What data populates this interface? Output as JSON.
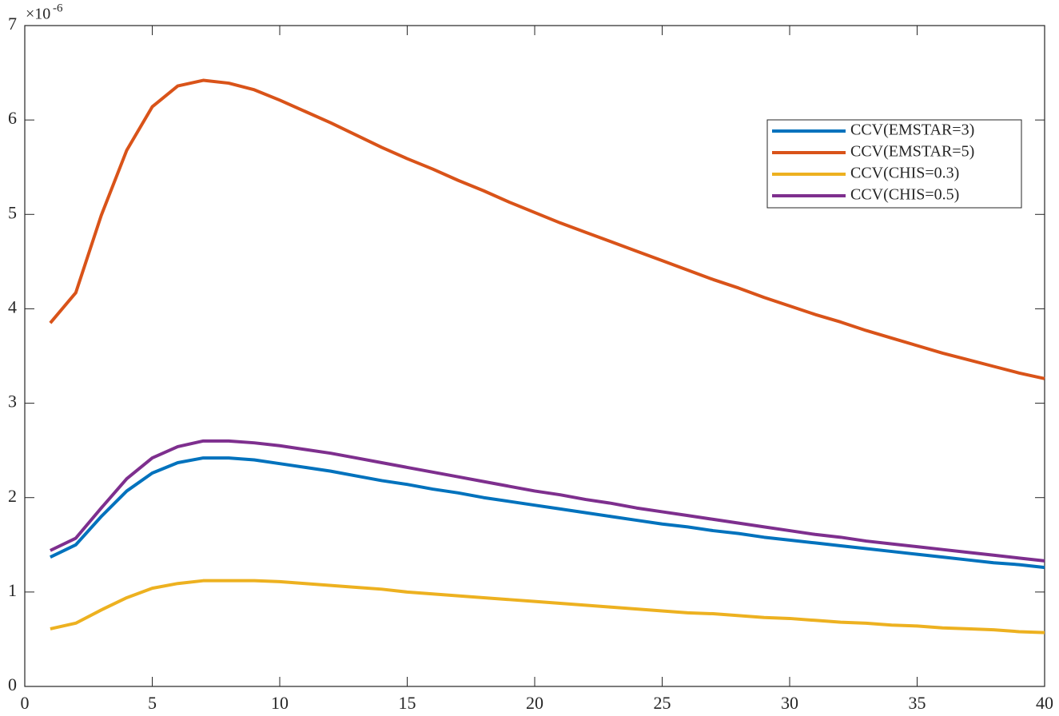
{
  "chart_data": {
    "type": "line",
    "x": [
      1,
      2,
      3,
      4,
      5,
      6,
      7,
      8,
      9,
      10,
      11,
      12,
      13,
      14,
      15,
      16,
      17,
      18,
      19,
      20,
      21,
      22,
      23,
      24,
      25,
      26,
      27,
      28,
      29,
      30,
      31,
      32,
      33,
      34,
      35,
      36,
      37,
      38,
      39,
      40
    ],
    "series": [
      {
        "name": "CCV(EMSTAR=3)",
        "color": "#0072bd",
        "values": [
          1.37,
          1.5,
          1.8,
          2.07,
          2.26,
          2.37,
          2.42,
          2.42,
          2.4,
          2.36,
          2.32,
          2.28,
          2.23,
          2.18,
          2.14,
          2.09,
          2.05,
          2.0,
          1.96,
          1.92,
          1.88,
          1.84,
          1.8,
          1.76,
          1.72,
          1.69,
          1.65,
          1.62,
          1.58,
          1.55,
          1.52,
          1.49,
          1.46,
          1.43,
          1.4,
          1.37,
          1.34,
          1.31,
          1.29,
          1.26
        ]
      },
      {
        "name": "CCV(EMSTAR=5)",
        "color": "#d95319",
        "values": [
          3.85,
          4.17,
          4.99,
          5.68,
          6.14,
          6.36,
          6.42,
          6.39,
          6.32,
          6.21,
          6.09,
          5.97,
          5.84,
          5.71,
          5.59,
          5.48,
          5.36,
          5.25,
          5.13,
          5.02,
          4.91,
          4.81,
          4.71,
          4.61,
          4.51,
          4.41,
          4.31,
          4.22,
          4.12,
          4.03,
          3.94,
          3.86,
          3.77,
          3.69,
          3.61,
          3.53,
          3.46,
          3.39,
          3.32,
          3.26
        ]
      },
      {
        "name": "CCV(CHIS=0.3)",
        "color": "#edb120",
        "values": [
          0.61,
          0.67,
          0.81,
          0.94,
          1.04,
          1.09,
          1.12,
          1.12,
          1.12,
          1.11,
          1.09,
          1.07,
          1.05,
          1.03,
          1.0,
          0.98,
          0.96,
          0.94,
          0.92,
          0.9,
          0.88,
          0.86,
          0.84,
          0.82,
          0.8,
          0.78,
          0.77,
          0.75,
          0.73,
          0.72,
          0.7,
          0.68,
          0.67,
          0.65,
          0.64,
          0.62,
          0.61,
          0.6,
          0.58,
          0.57
        ]
      },
      {
        "name": "CCV(CHIS=0.5)",
        "color": "#7e2f8e",
        "values": [
          1.44,
          1.57,
          1.89,
          2.2,
          2.42,
          2.54,
          2.6,
          2.6,
          2.58,
          2.55,
          2.51,
          2.47,
          2.42,
          2.37,
          2.32,
          2.27,
          2.22,
          2.17,
          2.12,
          2.07,
          2.03,
          1.98,
          1.94,
          1.89,
          1.85,
          1.81,
          1.77,
          1.73,
          1.69,
          1.65,
          1.61,
          1.58,
          1.54,
          1.51,
          1.48,
          1.45,
          1.42,
          1.39,
          1.36,
          1.33
        ]
      }
    ],
    "xlim": [
      0,
      40
    ],
    "xticks": [
      0,
      5,
      10,
      15,
      20,
      25,
      30,
      35,
      40
    ],
    "ylim": [
      0,
      7
    ],
    "yticks": [
      0,
      1,
      2,
      3,
      4,
      5,
      6,
      7
    ],
    "y_multiplier_base": "×10",
    "y_multiplier_exponent": "-6",
    "legend": "upper-right",
    "grid": false
  }
}
